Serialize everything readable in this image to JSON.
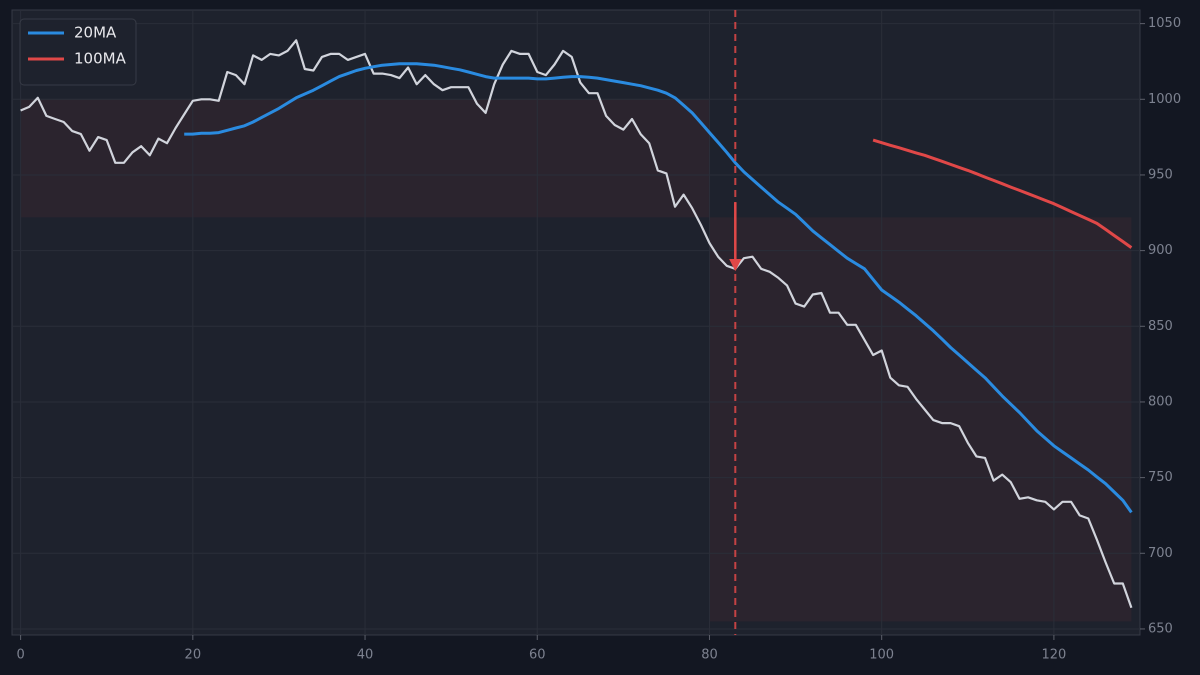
{
  "chart_data": {
    "type": "line",
    "x": [
      0,
      1,
      2,
      3,
      4,
      5,
      6,
      7,
      8,
      9,
      10,
      11,
      12,
      13,
      14,
      15,
      16,
      17,
      18,
      19,
      20,
      21,
      22,
      23,
      24,
      25,
      26,
      27,
      28,
      29,
      30,
      31,
      32,
      33,
      34,
      35,
      36,
      37,
      38,
      39,
      40,
      41,
      42,
      43,
      44,
      45,
      46,
      47,
      48,
      49,
      50,
      51,
      52,
      53,
      54,
      55,
      56,
      57,
      58,
      59,
      60,
      61,
      62,
      63,
      64,
      65,
      66,
      67,
      68,
      69,
      70,
      71,
      72,
      73,
      74,
      75,
      76,
      77,
      78,
      79,
      80,
      81,
      82,
      83,
      84,
      85,
      86,
      87,
      88,
      89,
      90,
      91,
      92,
      93,
      94,
      95,
      96,
      97,
      98,
      99,
      100,
      101,
      102,
      103,
      104,
      105,
      106,
      107,
      108,
      109,
      110,
      111,
      112,
      113,
      114,
      115,
      116,
      117,
      118,
      119,
      120,
      121,
      122,
      123,
      124,
      125,
      126,
      127,
      128,
      129
    ],
    "series": [
      {
        "color": "#d1d4dc",
        "values": [
          992.6,
          995,
          1001,
          989,
          987,
          985,
          979,
          977,
          966,
          975,
          973,
          958,
          958,
          965,
          969,
          963,
          974,
          971,
          981,
          990,
          999,
          1000,
          1000,
          999,
          1018,
          1016,
          1010,
          1029,
          1026,
          1030,
          1029,
          1032,
          1039,
          1020,
          1019,
          1028,
          1030,
          1030,
          1026,
          1028,
          1030,
          1017,
          1017,
          1016,
          1014,
          1021,
          1010,
          1016,
          1010,
          1006,
          1008,
          1008,
          1008,
          997,
          991,
          1010,
          1023,
          1032,
          1030,
          1030,
          1018,
          1016,
          1023,
          1032,
          1028,
          1011,
          1004,
          1004,
          989,
          983,
          980,
          987,
          977,
          971,
          953,
          951,
          929,
          937,
          928,
          917,
          905,
          896,
          890,
          888,
          895,
          896,
          888,
          886,
          882,
          877,
          865,
          863,
          871,
          872,
          859,
          859,
          851,
          851,
          841,
          831,
          834,
          816,
          811,
          810,
          802,
          795,
          788,
          786,
          786,
          784,
          773,
          764,
          763,
          748,
          752,
          747,
          736,
          737,
          735,
          734,
          729,
          734,
          734,
          725,
          723,
          709,
          694,
          680,
          680,
          664
        ]
      },
      {
        "name": "20MA",
        "color": "#2a8be0",
        "values": [
          null,
          null,
          null,
          null,
          null,
          null,
          null,
          null,
          null,
          null,
          null,
          null,
          null,
          null,
          null,
          null,
          null,
          null,
          null,
          977,
          977,
          977.5,
          977.5,
          978,
          979.5,
          981,
          982.5,
          985,
          988,
          991,
          994,
          997.5,
          1001,
          1003.5,
          1006,
          1009,
          1012,
          1015,
          1017,
          1019,
          1020.5,
          1021.5,
          1022.5,
          1023,
          1023.5,
          1023.5,
          1023.5,
          1023,
          1022.5,
          1021.5,
          1020.5,
          1019.5,
          1018,
          1016.5,
          1015,
          1014,
          1014,
          1014,
          1014,
          1014,
          1013.5,
          1013.5,
          1014,
          1014.5,
          1015,
          1015,
          1014.5,
          1014,
          1013,
          1012,
          1011,
          1010,
          1009,
          1007.5,
          1006,
          1004,
          1001,
          996,
          991,
          984.5,
          978,
          971.5,
          965,
          958,
          952,
          947,
          942,
          937,
          932,
          928,
          924,
          918.5,
          913,
          908.5,
          904,
          899.5,
          895,
          891.5,
          888,
          881,
          874,
          870,
          866,
          861.5,
          857,
          852,
          847,
          841.5,
          836,
          831,
          826,
          821,
          816,
          810,
          804,
          798.5,
          793,
          787,
          781,
          776,
          771,
          767,
          763,
          759,
          755,
          750.5,
          746,
          740.5,
          735,
          727
        ]
      },
      {
        "name": "100MA",
        "color": "#e04848",
        "values": [
          null,
          null,
          null,
          null,
          null,
          null,
          null,
          null,
          null,
          null,
          null,
          null,
          null,
          null,
          null,
          null,
          null,
          null,
          null,
          null,
          null,
          null,
          null,
          null,
          null,
          null,
          null,
          null,
          null,
          null,
          null,
          null,
          null,
          null,
          null,
          null,
          null,
          null,
          null,
          null,
          null,
          null,
          null,
          null,
          null,
          null,
          null,
          null,
          null,
          null,
          null,
          null,
          null,
          null,
          null,
          null,
          null,
          null,
          null,
          null,
          null,
          null,
          null,
          null,
          null,
          null,
          null,
          null,
          null,
          null,
          null,
          null,
          null,
          null,
          null,
          null,
          null,
          null,
          null,
          null,
          null,
          null,
          null,
          null,
          null,
          null,
          null,
          null,
          null,
          null,
          null,
          null,
          null,
          null,
          null,
          null,
          null,
          null,
          null,
          973,
          971.3,
          969.6,
          968,
          966.3,
          964.6,
          963,
          961,
          959,
          957,
          955,
          953,
          950.8,
          948.6,
          946.4,
          944.2,
          942,
          939.8,
          937.6,
          935.4,
          933.2,
          931,
          928.4,
          925.8,
          923.2,
          920.6,
          918,
          914,
          910,
          906,
          902
        ]
      }
    ],
    "shaded_regions": [
      {
        "x": [
          0,
          80
        ],
        "y": [
          922,
          1000
        ]
      },
      {
        "x": [
          80,
          129
        ],
        "y": [
          655,
          922
        ]
      }
    ],
    "vline": {
      "x": 83,
      "color": "#e04848"
    },
    "arrow": {
      "x": 83,
      "y": [
        932,
        888
      ],
      "color": "#e04848"
    },
    "xlim": [
      -1,
      130
    ],
    "xticks": [
      0,
      20,
      40,
      60,
      80,
      100,
      120
    ],
    "ylim": [
      646,
      1059
    ],
    "yticks": [
      650,
      700,
      750,
      800,
      850,
      900,
      950,
      1000,
      1050
    ],
    "grid": true,
    "legend": "upper left"
  }
}
